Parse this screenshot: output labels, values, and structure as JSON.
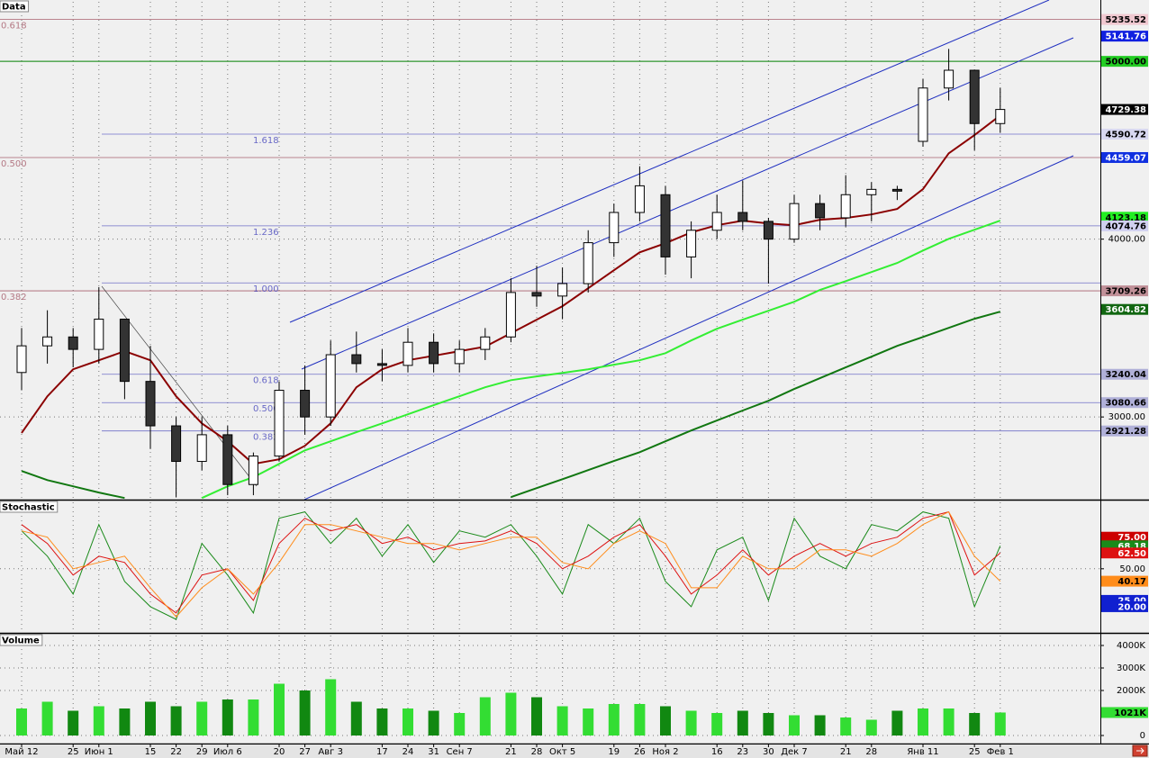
{
  "chart_data": [
    {
      "type": "candlestick",
      "title": "Data",
      "grid": true,
      "categories": [
        "Май 12",
        null,
        "25",
        "Июн 1",
        null,
        "15",
        "22",
        "29",
        "Июл 6",
        null,
        "20",
        "27",
        "Авг 3",
        null,
        "17",
        "24",
        "31",
        "Сен 7",
        null,
        "21",
        "28",
        "Окт 5",
        null,
        "19",
        "26",
        "Ноя 2",
        null,
        "16",
        "23",
        "30",
        "Дек 7",
        null,
        "21",
        "28",
        null,
        "Янв 11",
        null,
        "25",
        "Фев 1"
      ],
      "open": [
        3250,
        3400,
        3450,
        3380,
        3550,
        3200,
        2950,
        2750,
        2900,
        2620,
        2780,
        3150,
        3000,
        3350,
        3300,
        3290,
        3420,
        3300,
        3380,
        3450,
        3700,
        3680,
        3750,
        3980,
        4150,
        4250,
        3900,
        4050,
        4150,
        4100,
        4000,
        4200,
        4120,
        4250,
        4280,
        4550,
        4850,
        4950,
        4650
      ],
      "high": [
        3500,
        3600,
        3500,
        3730,
        3550,
        3400,
        3000,
        3000,
        2950,
        2800,
        3200,
        3290,
        3430,
        3480,
        3380,
        3500,
        3470,
        3430,
        3500,
        3780,
        3850,
        3840,
        4050,
        4200,
        4410,
        4300,
        4100,
        4250,
        4330,
        4120,
        4250,
        4250,
        4360,
        4320,
        4300,
        4900,
        5070,
        4950,
        4850
      ],
      "low": [
        3150,
        3300,
        3280,
        3300,
        3100,
        2820,
        2550,
        2700,
        2560,
        2560,
        2750,
        2900,
        2950,
        3250,
        3200,
        3250,
        3250,
        3250,
        3320,
        3420,
        3620,
        3550,
        3700,
        3900,
        4100,
        3800,
        3780,
        4000,
        4050,
        3750,
        3980,
        4050,
        4070,
        4100,
        4220,
        4520,
        4780,
        4500,
        4600
      ],
      "close": [
        3400,
        3450,
        3380,
        3550,
        3200,
        2950,
        2750,
        2900,
        2620,
        2780,
        3150,
        3000,
        3350,
        3300,
        3290,
        3420,
        3300,
        3380,
        3450,
        3700,
        3680,
        3750,
        3980,
        4150,
        4300,
        3900,
        4050,
        4150,
        4100,
        4000,
        4200,
        4120,
        4250,
        4280,
        4270,
        4850,
        4950,
        4650,
        4729.38
      ],
      "color_up": "#ffffff",
      "color_down": "#333333",
      "series": [
        {
          "color": "#8b0000",
          "values": [
            2910,
            3116,
            3268,
            3319,
            3370,
            3319,
            3116,
            2964,
            2863,
            2736,
            2762,
            2838,
            2964,
            3167,
            3268,
            3319,
            3344,
            3370,
            3395,
            3471,
            3547,
            3623,
            3724,
            3825,
            3926,
            3977,
            4038,
            4078,
            4104,
            4088,
            4078,
            4109,
            4119,
            4139,
            4170,
            4281,
            4483,
            4585,
            4696
          ]
        },
        {
          "color": "#33ee33",
          "values": [
            null,
            null,
            null,
            null,
            null,
            null,
            null,
            2544,
            2610,
            2661,
            2736,
            2812,
            2863,
            2914,
            2964,
            3015,
            3066,
            3116,
            3167,
            3207,
            3228,
            3248,
            3268,
            3294,
            3319,
            3359,
            3430,
            3496,
            3547,
            3597,
            3648,
            3714,
            3764,
            3815,
            3866,
            3936,
            4002,
            4053,
            4104
          ]
        },
        {
          "color": "#117711",
          "values": [
            2696,
            2645,
            2610,
            2575,
            2544,
            null,
            null,
            null,
            null,
            null,
            null,
            null,
            null,
            null,
            null,
            null,
            null,
            null,
            null,
            2549,
            2600,
            2650,
            2701,
            2752,
            2802,
            2863,
            2924,
            2980,
            3036,
            3091,
            3157,
            3218,
            3279,
            3339,
            3400,
            3450,
            3501,
            3552,
            3592
          ]
        }
      ],
      "ylim": [
        2535,
        5345
      ],
      "yticks": [
        {
          "value": 3000,
          "label": "3000.00"
        },
        {
          "value": 4000,
          "label": "4000.00"
        }
      ],
      "fib_groups": [
        {
          "color": "#a05060",
          "levels": [
            {
              "value": 5235.52,
              "label": "0.618"
            },
            {
              "value": 4459.07,
              "label": "0.500"
            },
            {
              "value": 3709.26,
              "label": "0.382"
            }
          ]
        },
        {
          "color": "#3a3ab8",
          "levels": [
            {
              "value": 4590.72,
              "label": "1.618"
            },
            {
              "value": 4074.76,
              "label": "1.236"
            },
            {
              "value": 3754,
              "label": "1.000"
            },
            {
              "value": 3240.04,
              "label": "0.618"
            },
            {
              "value": 3080.66,
              "label": "0.500"
            },
            {
              "value": 2921.28,
              "label": "0.382"
            }
          ]
        }
      ],
      "price_labels": [
        {
          "value": 5235.52,
          "label": "5235.52",
          "color": "#f0c8d0"
        },
        {
          "value": 5141.76,
          "label": "5141.76",
          "color": "#1020e0"
        },
        {
          "value": 5000,
          "label": "5000.00",
          "color": "#22cc22",
          "line": "#008000"
        },
        {
          "value": 4729.38,
          "label": "4729.38",
          "color": "#000000"
        },
        {
          "value": 4590.72,
          "label": "4590.72",
          "color": "#d8d8f0"
        },
        {
          "value": 4459.07,
          "label": "4459.07",
          "color": "#1030e0"
        },
        {
          "value": 4123.18,
          "label": "4123.18",
          "color": "#22ee22"
        },
        {
          "value": 4074.76,
          "label": "4074.76",
          "color": "#d0d0f0"
        },
        {
          "value": 3709.26,
          "label": "3709.26",
          "color": "#c09098"
        },
        {
          "value": 3604.82,
          "label": "3604.82",
          "color": "#116611"
        },
        {
          "value": 3240.04,
          "label": "3240.04",
          "color": "#b0b0d8"
        },
        {
          "value": 3080.66,
          "label": "3080.66",
          "color": "#b0b0d8"
        },
        {
          "value": 2921.28,
          "label": "2921.28",
          "color": "#b0b0d8"
        }
      ]
    },
    {
      "type": "line",
      "title": "Stochastic",
      "grid": true,
      "series": [
        {
          "color": "#1a8a1a",
          "values": [
            80,
            60,
            30,
            85,
            40,
            20,
            10,
            70,
            45,
            15,
            90,
            95,
            70,
            90,
            60,
            85,
            55,
            80,
            75,
            85,
            60,
            30,
            85,
            70,
            90,
            40,
            20,
            65,
            75,
            25,
            90,
            60,
            50,
            85,
            80,
            95,
            90,
            20,
            68.18
          ],
          "value_labels": [
            null,
            null,
            null,
            null,
            null,
            null,
            null,
            null,
            null,
            null,
            null,
            null,
            null,
            null,
            null,
            null,
            null,
            null,
            null,
            null,
            null,
            null,
            null,
            null,
            null,
            null,
            null,
            null,
            null,
            null,
            null,
            null,
            null,
            null,
            null,
            null,
            null,
            null,
            "68.18"
          ]
        },
        {
          "color": "#dd1111",
          "values": [
            85,
            70,
            45,
            60,
            55,
            30,
            15,
            45,
            50,
            25,
            70,
            90,
            80,
            85,
            70,
            75,
            65,
            70,
            72,
            80,
            70,
            50,
            60,
            75,
            85,
            60,
            30,
            45,
            65,
            45,
            60,
            70,
            60,
            70,
            75,
            90,
            95,
            45,
            62.5
          ],
          "value_labels": [
            null,
            null,
            null,
            null,
            null,
            null,
            null,
            null,
            null,
            null,
            null,
            null,
            null,
            null,
            null,
            null,
            null,
            null,
            null,
            null,
            null,
            null,
            null,
            null,
            null,
            null,
            null,
            null,
            null,
            null,
            null,
            null,
            null,
            null,
            null,
            null,
            null,
            null,
            "62.50"
          ]
        },
        {
          "color": "#ff8c1a",
          "values": [
            80,
            75,
            50,
            55,
            60,
            35,
            12,
            35,
            50,
            30,
            55,
            85,
            85,
            80,
            75,
            70,
            70,
            65,
            70,
            75,
            75,
            55,
            50,
            70,
            80,
            70,
            35,
            35,
            60,
            50,
            50,
            65,
            65,
            60,
            70,
            85,
            95,
            60,
            40.17
          ],
          "value_labels": [
            null,
            null,
            null,
            null,
            null,
            null,
            null,
            null,
            null,
            null,
            null,
            null,
            null,
            null,
            null,
            null,
            null,
            null,
            null,
            null,
            null,
            null,
            null,
            null,
            null,
            null,
            null,
            null,
            null,
            null,
            null,
            null,
            null,
            null,
            null,
            null,
            null,
            null,
            "40.17"
          ]
        }
      ],
      "ylim": [
        0,
        104
      ],
      "yticks": [
        {
          "value": 50,
          "label": "50.00"
        }
      ],
      "levels": [
        {
          "value": 75,
          "label": "75.00",
          "color": "#cc0000"
        },
        {
          "value": 25,
          "label": "25.00",
          "color": "#1020d0"
        },
        {
          "value": 20,
          "label": "20.00",
          "color": "#1020d0"
        }
      ]
    },
    {
      "type": "bar",
      "title": "Volume",
      "grid": true,
      "values": [
        1200,
        1500,
        1100,
        1300,
        1200,
        1500,
        1300,
        1500,
        1600,
        1600,
        2300,
        2000,
        2500,
        1500,
        1200,
        1200,
        1100,
        1000,
        1700,
        1900,
        1700,
        1300,
        1200,
        1400,
        1400,
        1300,
        1100,
        1000,
        1100,
        1000,
        900,
        900,
        800,
        700,
        1100,
        1200,
        1200,
        1000,
        1021
      ],
      "value_labels": [
        null,
        null,
        null,
        null,
        null,
        null,
        null,
        null,
        null,
        null,
        null,
        null,
        null,
        null,
        null,
        null,
        null,
        null,
        null,
        null,
        null,
        null,
        null,
        null,
        null,
        null,
        null,
        null,
        null,
        null,
        null,
        null,
        null,
        null,
        null,
        null,
        null,
        null,
        "1021K"
      ],
      "color_up": "#33dd33",
      "color_down": "#118811",
      "ylim": [
        0,
        4520
      ],
      "yticks": [
        0,
        {
          "value": 2000,
          "label": "2000K"
        },
        {
          "value": 3000,
          "label": "3000K"
        },
        {
          "value": 4000,
          "label": "4000K"
        }
      ]
    }
  ]
}
